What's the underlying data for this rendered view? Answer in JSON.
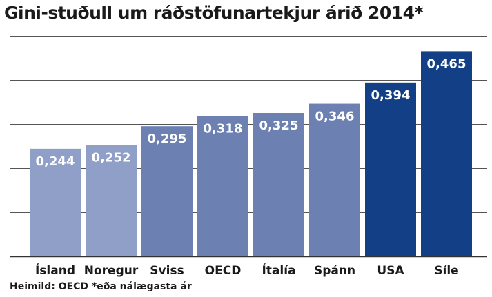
{
  "chart_data": {
    "type": "bar",
    "title": "Gini-stuðull um ráðstöfunartekjur árið 2014*",
    "categories": [
      "Ísland",
      "Noregur",
      "Sviss",
      "OECD",
      "Ítalía",
      "Spánn",
      "USA",
      "Síle"
    ],
    "values": [
      0.244,
      0.252,
      0.295,
      0.318,
      0.325,
      0.346,
      0.394,
      0.465
    ],
    "value_labels": [
      "0,244",
      "0,252",
      "0,295",
      "0,318",
      "0,325",
      "0,346",
      "0,394",
      "0,465"
    ],
    "bar_colors": [
      "#8f9fc7",
      "#8f9fc7",
      "#6d80b2",
      "#6d80b2",
      "#6d80b2",
      "#6d80b2",
      "#123f85",
      "#123f85"
    ],
    "ylim": [
      0,
      0.5
    ],
    "grid": true,
    "source": "Heimild: OECD *eða nálægasta ár"
  }
}
